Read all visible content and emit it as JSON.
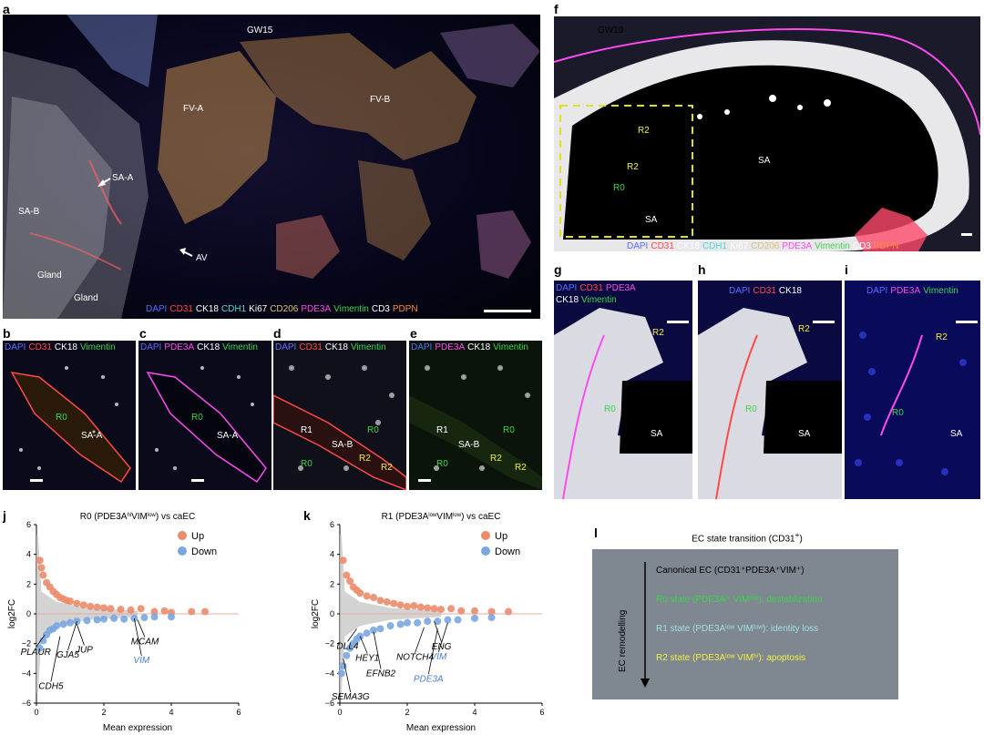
{
  "panel_labels": {
    "a": "a",
    "b": "b",
    "c": "c",
    "d": "d",
    "e": "e",
    "f": "f",
    "g": "g",
    "h": "h",
    "i": "i",
    "j": "j",
    "k": "k",
    "l": "l"
  },
  "colors": {
    "DAPI": "#5a6cff",
    "CD31": "#ff4a4a",
    "CK18": "#ffffff",
    "CDH1": "#4fd8d8",
    "Ki67": "#ffffff",
    "CD206": "#d9c27a",
    "PDE3A": "#ff4af0",
    "Vimentin": "#3bd64a",
    "CD3": "#ffffff",
    "PDPN": "#ff8a3a",
    "up": "#ec8b6c",
    "down": "#7aa6e0",
    "l_bg": "#7f8790",
    "r0": "#3bd64a",
    "r1": "#9fe0e0",
    "r2": "#f0f040"
  },
  "panel_a": {
    "labels": {
      "gw": "GW15",
      "fva": "FV-A",
      "fvb": "FV-B",
      "saa": "SA-A",
      "sab": "SA-B",
      "av": "AV",
      "gland1": "Gland",
      "gland2": "Gland"
    },
    "legend": [
      {
        "t": "DAPI",
        "c": "DAPI"
      },
      {
        "t": "CD31",
        "c": "CD31"
      },
      {
        "t": "CK18",
        "c": "CK18"
      },
      {
        "t": "CDH1",
        "c": "CDH1"
      },
      {
        "t": "Ki67",
        "c": "Ki67"
      },
      {
        "t": "CD206",
        "c": "CD206"
      },
      {
        "t": "PDE3A",
        "c": "PDE3A"
      },
      {
        "t": "Vimentin",
        "c": "Vimentin"
      },
      {
        "t": "CD3",
        "c": "CD3"
      },
      {
        "t": "PDPN",
        "c": "PDPN"
      }
    ]
  },
  "panel_b": {
    "legend": [
      {
        "t": "DAPI",
        "c": "DAPI"
      },
      {
        "t": "CD31",
        "c": "CD31"
      },
      {
        "t": "CK18",
        "c": "CK18"
      },
      {
        "t": "Vimentin",
        "c": "Vimentin"
      }
    ],
    "labels": {
      "r0": "R0",
      "sa": "SA-A"
    }
  },
  "panel_c": {
    "legend": [
      {
        "t": "DAPI",
        "c": "DAPI"
      },
      {
        "t": "PDE3A",
        "c": "PDE3A"
      },
      {
        "t": "CK18",
        "c": "CK18"
      },
      {
        "t": "Vimentin",
        "c": "Vimentin"
      }
    ],
    "labels": {
      "r0": "R0",
      "sa": "SA-A"
    }
  },
  "panel_d": {
    "legend": [
      {
        "t": "DAPI",
        "c": "DAPI"
      },
      {
        "t": "CD31",
        "c": "CD31"
      },
      {
        "t": "CK18",
        "c": "CK18"
      },
      {
        "t": "Vimentin",
        "c": "Vimentin"
      }
    ],
    "labels": {
      "r1": "R1",
      "r0a": "R0",
      "r0b": "R0",
      "sa": "SA-B",
      "r2a": "R2",
      "r2b": "R2"
    }
  },
  "panel_e": {
    "legend": [
      {
        "t": "DAPI",
        "c": "DAPI"
      },
      {
        "t": "PDE3A",
        "c": "PDE3A"
      },
      {
        "t": "CK18",
        "c": "CK18"
      },
      {
        "t": "Vimentin",
        "c": "Vimentin"
      }
    ],
    "labels": {
      "r1": "R1",
      "r0a": "R0",
      "r0b": "R0",
      "sa": "SA-B",
      "r2a": "R2",
      "r2b": "R2"
    }
  },
  "panel_f": {
    "labels": {
      "gw": "GW19",
      "sa": "SA",
      "sa2": "SA",
      "r2a": "R2",
      "r2b": "R2",
      "r0": "R0"
    },
    "legend": [
      {
        "t": "DAPI",
        "c": "DAPI"
      },
      {
        "t": "CD31",
        "c": "CD31"
      },
      {
        "t": "CK18",
        "c": "CK18"
      },
      {
        "t": "CDH1",
        "c": "CDH1"
      },
      {
        "t": "Ki67",
        "c": "Ki67"
      },
      {
        "t": "CD206",
        "c": "CD206"
      },
      {
        "t": "PDE3A",
        "c": "PDE3A"
      },
      {
        "t": "Vimentin",
        "c": "Vimentin"
      },
      {
        "t": "CD3",
        "c": "CD3"
      },
      {
        "t": "PDPN",
        "c": "PDPN"
      }
    ]
  },
  "panel_g": {
    "legend1": [
      {
        "t": "DAPI",
        "c": "DAPI"
      },
      {
        "t": "CD31",
        "c": "CD31"
      },
      {
        "t": "PDE3A",
        "c": "PDE3A"
      }
    ],
    "legend2": [
      {
        "t": "CK18",
        "c": "CK18"
      },
      {
        "t": "Vimentin",
        "c": "Vimentin"
      }
    ],
    "labels": {
      "r2": "R2",
      "r0": "R0",
      "sa": "SA"
    }
  },
  "panel_h": {
    "legend": [
      {
        "t": "DAPI",
        "c": "DAPI"
      },
      {
        "t": "CD31",
        "c": "CD31"
      },
      {
        "t": "CK18",
        "c": "CK18"
      }
    ],
    "labels": {
      "r2": "R2",
      "r0": "R0",
      "sa": "SA"
    }
  },
  "panel_i": {
    "legend": [
      {
        "t": "DAPI",
        "c": "DAPI"
      },
      {
        "t": "PDE3A",
        "c": "PDE3A"
      },
      {
        "t": "Vimentin",
        "c": "Vimentin"
      }
    ],
    "labels": {
      "r2": "R2",
      "r0": "R0",
      "sa": "SA"
    }
  },
  "chart_data": [
    {
      "type": "scatter",
      "title": "R0 (PDE3A^hi VIM^low) vs caEC",
      "title_parts": [
        "R0 (PDE3A",
        "hi",
        "VIM",
        "low",
        ") vs caEC"
      ],
      "xlabel": "Mean expression",
      "ylabel": "log2FC",
      "xlim": [
        0,
        6
      ],
      "ylim": [
        -6,
        6
      ],
      "xticks": [
        "0",
        "2",
        "4",
        "6"
      ],
      "yticks": [
        "6",
        "4",
        "2",
        "0",
        "−2",
        "−4",
        "−6"
      ],
      "legend": [
        "Up",
        "Down"
      ],
      "series": [
        {
          "name": "Up",
          "points": [
            [
              0.1,
              3.6
            ],
            [
              0.15,
              3.1
            ],
            [
              0.2,
              2.6
            ],
            [
              0.3,
              2.1
            ],
            [
              0.4,
              1.8
            ],
            [
              0.5,
              1.5
            ],
            [
              0.6,
              1.3
            ],
            [
              0.7,
              1.1
            ],
            [
              0.8,
              1.0
            ],
            [
              0.9,
              0.9
            ],
            [
              1.0,
              0.85
            ],
            [
              1.2,
              0.7
            ],
            [
              1.4,
              0.6
            ],
            [
              1.6,
              0.5
            ],
            [
              1.8,
              0.45
            ],
            [
              2.0,
              0.4
            ],
            [
              2.2,
              0.35
            ],
            [
              2.5,
              0.3
            ],
            [
              2.8,
              0.25
            ],
            [
              3.1,
              0.35
            ],
            [
              3.5,
              0.15
            ],
            [
              3.8,
              0.2
            ],
            [
              4.0,
              0.1
            ],
            [
              4.6,
              0.15
            ],
            [
              5.0,
              0.15
            ]
          ]
        },
        {
          "name": "Down",
          "points": [
            [
              0.1,
              -2.3
            ],
            [
              0.2,
              -1.8
            ],
            [
              0.3,
              -1.4
            ],
            [
              0.4,
              -1.1
            ],
            [
              0.5,
              -1.0
            ],
            [
              0.6,
              -0.8
            ],
            [
              0.8,
              -0.7
            ],
            [
              1.0,
              -0.6
            ],
            [
              1.2,
              -0.5
            ],
            [
              1.5,
              -0.45
            ],
            [
              1.8,
              -0.4
            ],
            [
              2.0,
              -0.35
            ],
            [
              2.3,
              -0.3
            ],
            [
              2.6,
              -0.35
            ],
            [
              2.9,
              -0.3
            ],
            [
              3.2,
              -0.25
            ],
            [
              3.5,
              -0.2
            ],
            [
              4.0,
              -0.2
            ]
          ]
        }
      ],
      "genes": [
        {
          "name": "PLAUR",
          "x": 0.25,
          "y": -1.4,
          "highlight": false
        },
        {
          "name": "JUP",
          "x": 1.2,
          "y": -0.7,
          "highlight": false
        },
        {
          "name": "GJA5",
          "x": 1.2,
          "y": -0.5,
          "highlight": false
        },
        {
          "name": "VIM",
          "x": 2.9,
          "y": -0.3,
          "highlight": true
        },
        {
          "name": "CDH5",
          "x": 0.7,
          "y": -1.5,
          "highlight": false
        },
        {
          "name": "MCAM",
          "x": 3.0,
          "y": -0.4,
          "highlight": false
        }
      ]
    },
    {
      "type": "scatter",
      "title": "R1 (PDE3A^low VIM^low) vs caEC",
      "title_parts": [
        "R1 (PDE3A",
        "low",
        "VIM",
        "low",
        ") vs caEC"
      ],
      "xlabel": "Mean expression",
      "ylabel": "log2FC",
      "xlim": [
        0,
        6
      ],
      "ylim": [
        -6,
        6
      ],
      "xticks": [
        "0",
        "2",
        "4",
        "6"
      ],
      "yticks": [
        "6",
        "4",
        "2",
        "0",
        "−2",
        "−4",
        "−6"
      ],
      "legend": [
        "Up",
        "Down"
      ],
      "series": [
        {
          "name": "Up",
          "points": [
            [
              0.1,
              3.6
            ],
            [
              0.2,
              2.6
            ],
            [
              0.3,
              2.2
            ],
            [
              0.4,
              1.8
            ],
            [
              0.5,
              1.6
            ],
            [
              0.6,
              1.4
            ],
            [
              0.8,
              1.2
            ],
            [
              1.0,
              1.1
            ],
            [
              1.2,
              0.9
            ],
            [
              1.4,
              0.8
            ],
            [
              1.6,
              0.7
            ],
            [
              1.8,
              0.6
            ],
            [
              2.0,
              0.5
            ],
            [
              2.2,
              0.55
            ],
            [
              2.4,
              0.45
            ],
            [
              2.6,
              0.4
            ],
            [
              2.8,
              0.35
            ],
            [
              3.0,
              0.3
            ],
            [
              3.3,
              0.35
            ],
            [
              3.6,
              0.2
            ],
            [
              4.0,
              0.2
            ],
            [
              4.5,
              0.15
            ],
            [
              5.0,
              0.15
            ]
          ]
        },
        {
          "name": "Down",
          "points": [
            [
              0.05,
              -4.0
            ],
            [
              0.1,
              -3.5
            ],
            [
              0.2,
              -2.8
            ],
            [
              0.3,
              -2.3
            ],
            [
              0.4,
              -2.0
            ],
            [
              0.5,
              -1.7
            ],
            [
              0.6,
              -1.5
            ],
            [
              0.8,
              -1.3
            ],
            [
              1.0,
              -1.1
            ],
            [
              1.2,
              -1.0
            ],
            [
              1.5,
              -0.8
            ],
            [
              1.8,
              -0.7
            ],
            [
              2.0,
              -0.6
            ],
            [
              2.3,
              -0.6
            ],
            [
              2.6,
              -0.5
            ],
            [
              2.9,
              -0.5
            ],
            [
              3.2,
              -0.4
            ],
            [
              3.5,
              -0.4
            ],
            [
              4.0,
              -0.3
            ],
            [
              4.5,
              -0.25
            ]
          ]
        }
      ],
      "genes": [
        {
          "name": "DLL4",
          "x": 0.5,
          "y": -1.0,
          "highlight": false
        },
        {
          "name": "ENG",
          "x": 2.8,
          "y": -0.5,
          "highlight": false
        },
        {
          "name": "VIM",
          "x": 3.2,
          "y": -0.6,
          "highlight": true
        },
        {
          "name": "EFNB2",
          "x": 1.0,
          "y": -1.2,
          "highlight": false
        },
        {
          "name": "PDE3A",
          "x": 2.9,
          "y": -1.0,
          "highlight": true
        },
        {
          "name": "HEY1",
          "x": 0.6,
          "y": -1.5,
          "highlight": false
        },
        {
          "name": "NOTCH4",
          "x": 2.5,
          "y": -0.9,
          "highlight": false
        },
        {
          "name": "SEMA3G",
          "x": 0.1,
          "y": -3.0,
          "highlight": false
        }
      ]
    }
  ],
  "panel_l": {
    "title": "EC state transition (CD31",
    "title_sup": "+",
    "title_end": ")",
    "side_label": "EC remodelling",
    "states": [
      {
        "text": "Canonical EC (CD31⁺PDE3A⁺VIM⁺)",
        "c": "#000000"
      },
      {
        "text": "R0 state (PDE3Aʰⁱ VIMˡᵒʷ): destablization",
        "c": "r0"
      },
      {
        "text": "R1 state (PDE3Aˡᵒʷ VIMˡᵒʷ): identity loss",
        "c": "r1"
      },
      {
        "text": "R2 state (PDE3Aˡᵒʷ VIMʰⁱ): apoptosis",
        "c": "r2"
      }
    ]
  }
}
